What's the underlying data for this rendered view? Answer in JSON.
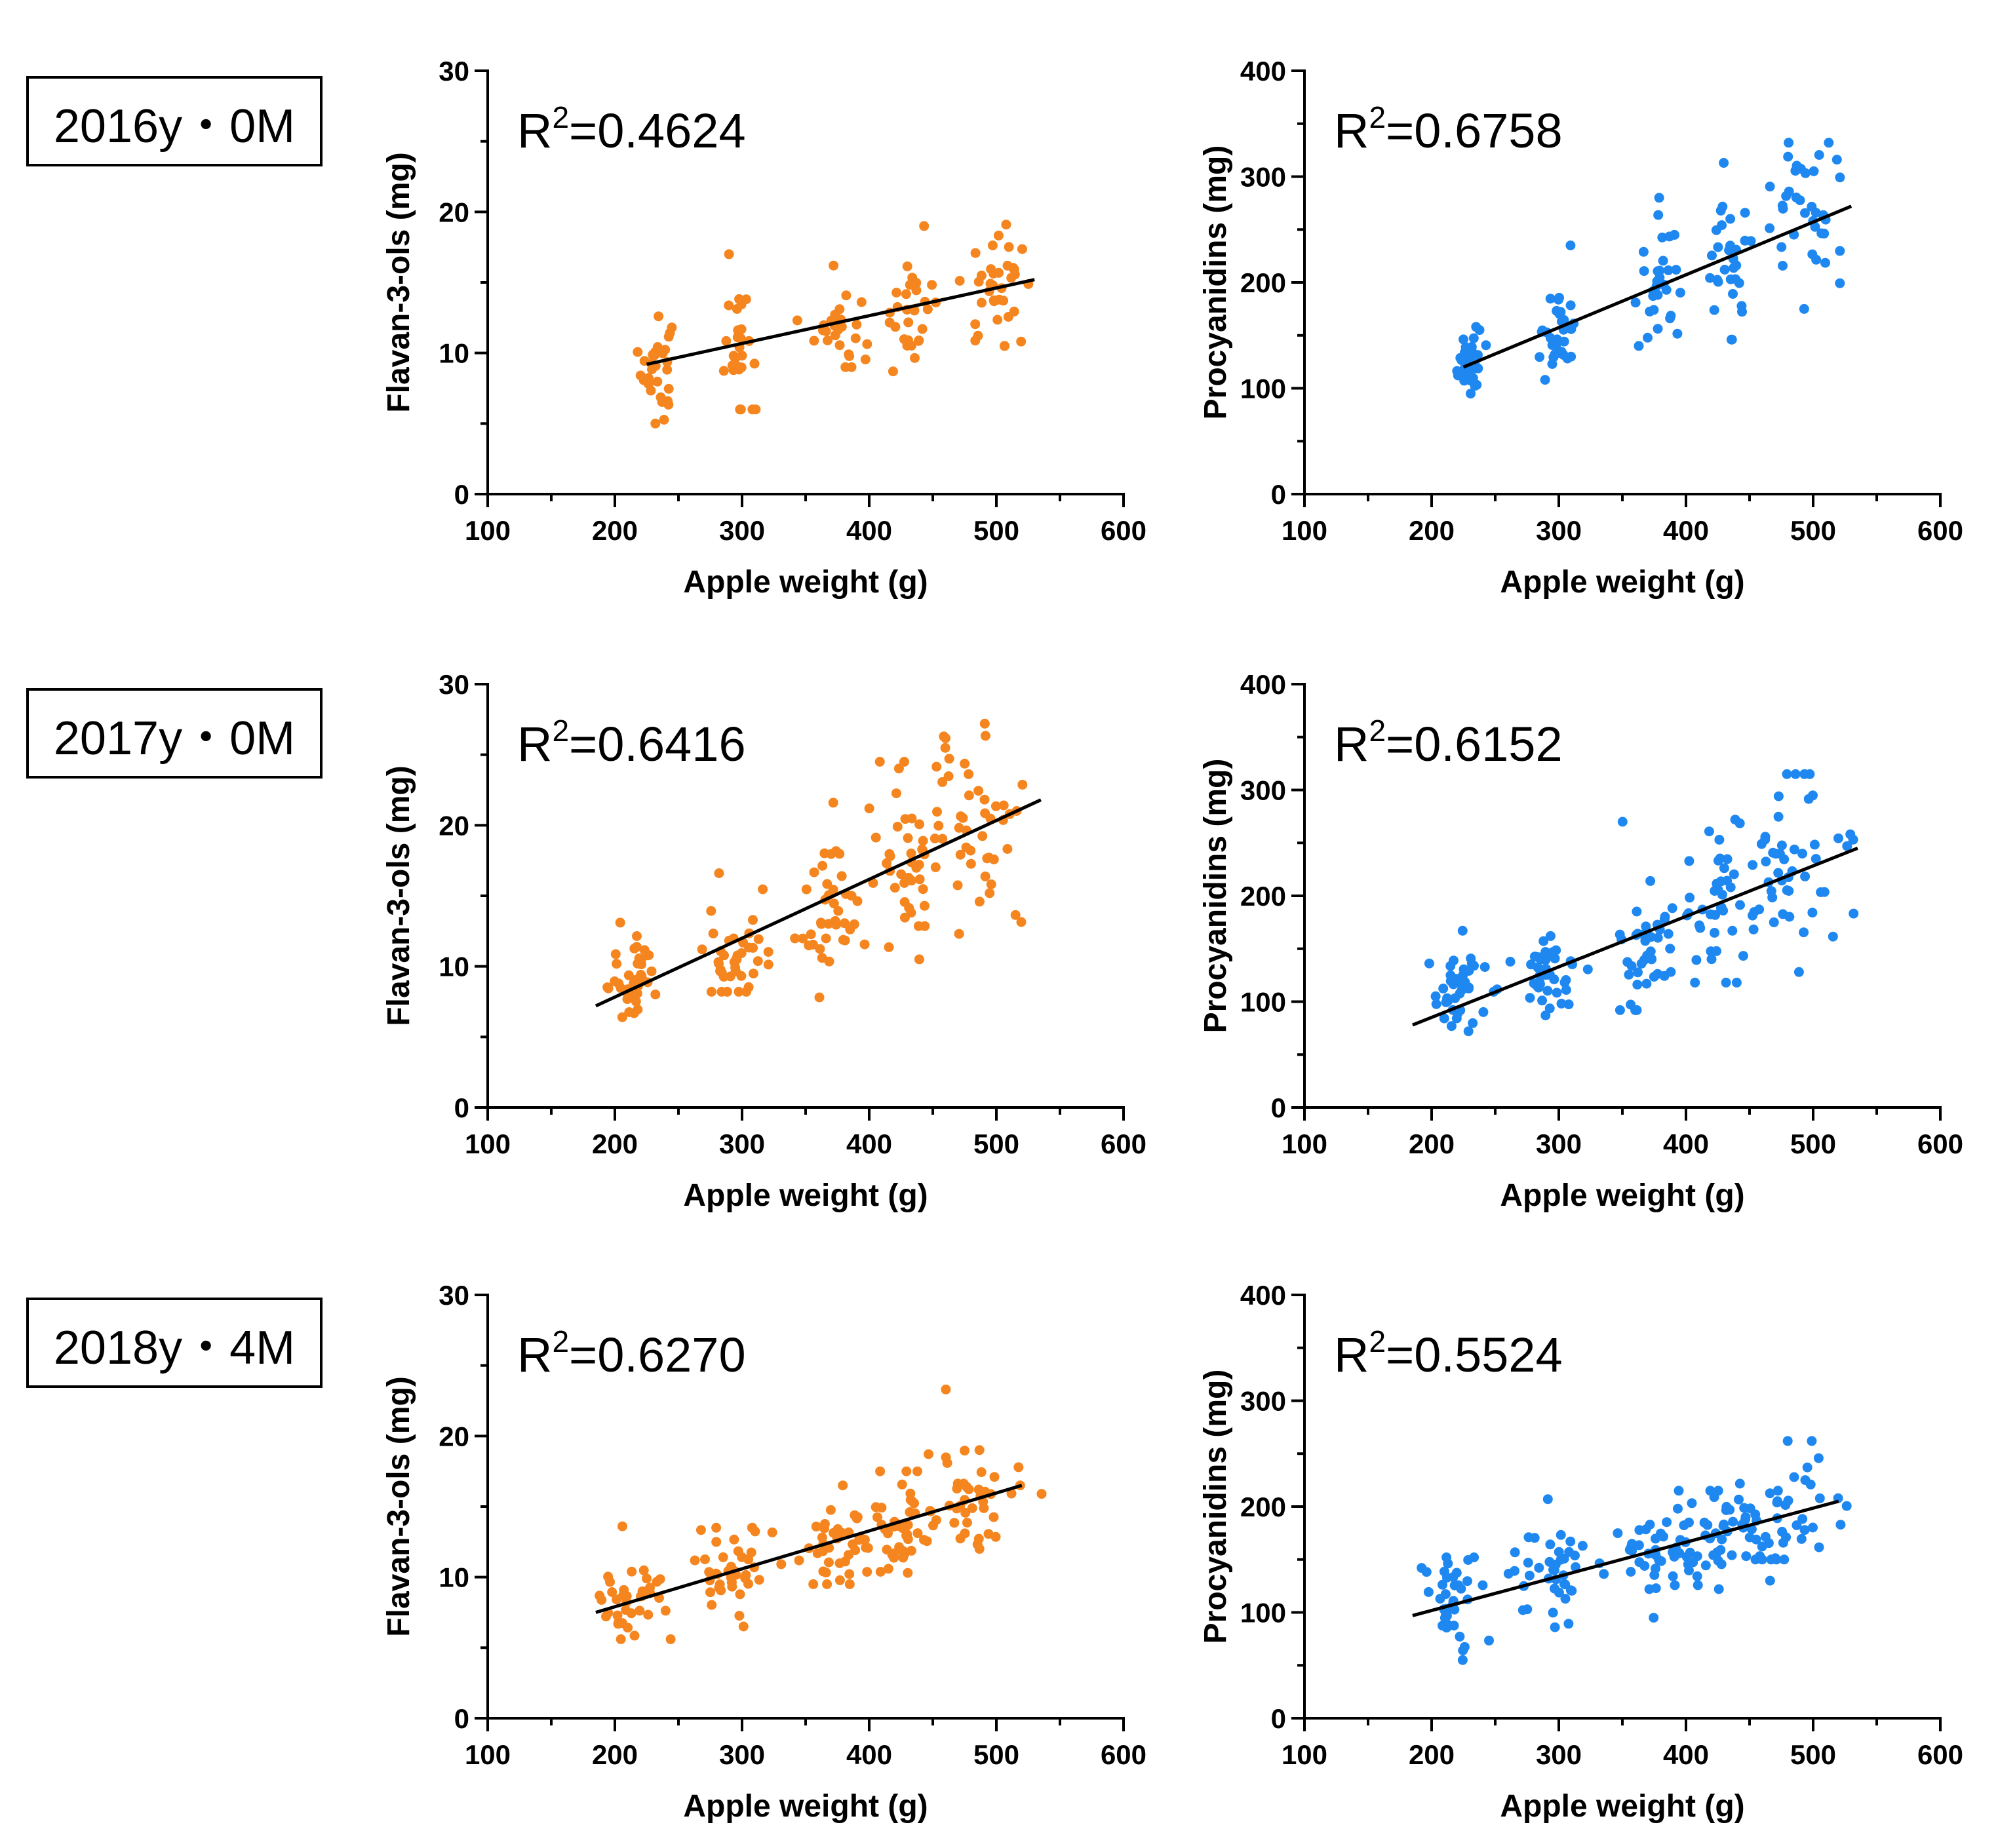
{
  "row_labels": [
    "2016y・0M",
    "2017y・0M",
    "2018y・4M"
  ],
  "colors": {
    "flavan": "#F5851F",
    "procyanidin": "#1E88F0",
    "fit": "#000000"
  },
  "chart_data": [
    {
      "type": "scatter",
      "row": 0,
      "col": 0,
      "color_key": "flavan",
      "r2_prefix": "R",
      "r2_sup": "2",
      "r2_value": "=0.4624",
      "xlabel": "Apple weight (g)",
      "ylabel": "Flavan-3-ols (mg)",
      "xlim": [
        100,
        600
      ],
      "ylim": [
        0,
        30
      ],
      "xticks": [
        100,
        200,
        300,
        400,
        500,
        600
      ],
      "yticks": [
        0,
        10,
        20,
        30
      ],
      "fit": {
        "x": [
          225,
          530
        ],
        "y": [
          9.2,
          15.2
        ]
      },
      "clusters": [
        {
          "xc": 233,
          "xs": 6,
          "yc": 9,
          "ys": 1.8,
          "n": 32,
          "ymin": 5,
          "ymax": 12.6
        },
        {
          "xc": 298,
          "xs": 7,
          "yc": 10.5,
          "ys": 2.3,
          "n": 30,
          "ymin": 6,
          "ymax": 17
        },
        {
          "xc": 375,
          "xs": 9,
          "yc": 11.8,
          "ys": 1.4,
          "n": 28,
          "ymin": 9,
          "ymax": 16.2
        },
        {
          "xc": 432,
          "xs": 10,
          "yc": 13.2,
          "ys": 1.9,
          "n": 28,
          "ymin": 8.7,
          "ymax": 19
        },
        {
          "xc": 500,
          "xs": 14,
          "yc": 14.3,
          "ys": 1.8,
          "n": 36,
          "ymin": 10.5,
          "ymax": 19.1
        }
      ]
    },
    {
      "type": "scatter",
      "row": 0,
      "col": 1,
      "color_key": "procyanidin",
      "r2_prefix": "R",
      "r2_sup": "2",
      "r2_value": "=0.6758",
      "xlabel": "Apple weight (g)",
      "ylabel": "Procyanidins (mg)",
      "xlim": [
        100,
        600
      ],
      "ylim": [
        0,
        400
      ],
      "xticks": [
        100,
        200,
        300,
        400,
        500,
        600
      ],
      "yticks": [
        0,
        100,
        200,
        300,
        400
      ],
      "fit": {
        "x": [
          225,
          530
        ],
        "y": [
          120,
          272
        ]
      },
      "clusters": [
        {
          "xc": 230,
          "xs": 5,
          "yc": 125,
          "ys": 14,
          "n": 34,
          "ymin": 95,
          "ymax": 158
        },
        {
          "xc": 300,
          "xs": 6,
          "yc": 152,
          "ys": 22,
          "n": 32,
          "ymin": 108,
          "ymax": 235
        },
        {
          "xc": 378,
          "xs": 10,
          "yc": 200,
          "ys": 30,
          "n": 28,
          "ymin": 140,
          "ymax": 280
        },
        {
          "xc": 432,
          "xs": 12,
          "yc": 225,
          "ys": 32,
          "n": 34,
          "ymin": 146,
          "ymax": 313
        },
        {
          "xc": 497,
          "xs": 14,
          "yc": 262,
          "ys": 38,
          "n": 36,
          "ymin": 175,
          "ymax": 332
        }
      ]
    },
    {
      "type": "scatter",
      "row": 1,
      "col": 0,
      "color_key": "flavan",
      "r2_prefix": "R",
      "r2_sup": "2",
      "r2_value": "=0.6416",
      "xlabel": "Apple weight (g)",
      "ylabel": "Flavan-3-ols (mg)",
      "xlim": [
        100,
        600
      ],
      "ylim": [
        0,
        30
      ],
      "xticks": [
        100,
        200,
        300,
        400,
        500,
        600
      ],
      "yticks": [
        0,
        10,
        20,
        30
      ],
      "fit": {
        "x": [
          185,
          535
        ],
        "y": [
          7.2,
          21.8
        ]
      },
      "clusters": [
        {
          "xc": 218,
          "xs": 12,
          "yc": 9.3,
          "ys": 1.4,
          "n": 42,
          "ymin": 6.4,
          "ymax": 13.1
        },
        {
          "xc": 292,
          "xs": 13,
          "yc": 10.6,
          "ys": 1.9,
          "n": 40,
          "ymin": 8.2,
          "ymax": 16.6
        },
        {
          "xc": 370,
          "xs": 12,
          "yc": 13.5,
          "ys": 2.6,
          "n": 40,
          "ymin": 7.8,
          "ymax": 21.6
        },
        {
          "xc": 430,
          "xs": 14,
          "yc": 17.5,
          "ys": 2.8,
          "n": 44,
          "ymin": 10.5,
          "ymax": 24.5
        },
        {
          "xc": 485,
          "xs": 18,
          "yc": 19.5,
          "ys": 3.5,
          "n": 44,
          "ymin": 12.3,
          "ymax": 27.2
        }
      ]
    },
    {
      "type": "scatter",
      "row": 1,
      "col": 1,
      "color_key": "procyanidin",
      "r2_prefix": "R",
      "r2_sup": "2",
      "r2_value": "=0.6152",
      "xlabel": "Apple weight (g)",
      "ylabel": "Procyanidins (mg)",
      "xlim": [
        100,
        600
      ],
      "ylim": [
        0,
        400
      ],
      "xticks": [
        100,
        200,
        300,
        400,
        500,
        600
      ],
      "yticks": [
        0,
        100,
        200,
        300,
        400
      ],
      "fit": {
        "x": [
          185,
          535
        ],
        "y": [
          78,
          245
        ]
      },
      "clusters": [
        {
          "xc": 218,
          "xs": 12,
          "yc": 110,
          "ys": 18,
          "n": 42,
          "ymin": 72,
          "ymax": 167
        },
        {
          "xc": 292,
          "xs": 13,
          "yc": 120,
          "ys": 18,
          "n": 40,
          "ymin": 87,
          "ymax": 162
        },
        {
          "xc": 370,
          "xs": 12,
          "yc": 155,
          "ys": 35,
          "n": 40,
          "ymin": 92,
          "ymax": 270
        },
        {
          "xc": 430,
          "xs": 14,
          "yc": 190,
          "ys": 35,
          "n": 44,
          "ymin": 118,
          "ymax": 272
        },
        {
          "xc": 488,
          "xs": 18,
          "yc": 230,
          "ys": 38,
          "n": 44,
          "ymin": 128,
          "ymax": 315
        }
      ]
    },
    {
      "type": "scatter",
      "row": 2,
      "col": 0,
      "color_key": "flavan",
      "r2_prefix": "R",
      "r2_sup": "2",
      "r2_value": "=0.6270",
      "xlabel": "Apple weight (g)",
      "ylabel": "Flavan-3-ols (mg)",
      "xlim": [
        100,
        600
      ],
      "ylim": [
        0,
        30
      ],
      "xticks": [
        100,
        200,
        300,
        400,
        500,
        600
      ],
      "yticks": [
        0,
        10,
        20,
        30
      ],
      "fit": {
        "x": [
          185,
          520
        ],
        "y": [
          7.5,
          16.5
        ]
      },
      "clusters": [
        {
          "xc": 215,
          "xs": 12,
          "yc": 8.8,
          "ys": 1.6,
          "n": 38,
          "ymin": 5.6,
          "ymax": 13.6
        },
        {
          "xc": 292,
          "xs": 16,
          "yc": 10.5,
          "ys": 1.7,
          "n": 40,
          "ymin": 6.5,
          "ymax": 13.5
        },
        {
          "xc": 375,
          "xs": 18,
          "yc": 12.3,
          "ys": 1.6,
          "n": 44,
          "ymin": 9.5,
          "ymax": 16.5
        },
        {
          "xc": 430,
          "xs": 16,
          "yc": 13.5,
          "ys": 1.7,
          "n": 42,
          "ymin": 10.3,
          "ymax": 17.5
        },
        {
          "xc": 480,
          "xs": 20,
          "yc": 15.5,
          "ys": 2.0,
          "n": 40,
          "ymin": 12,
          "ymax": 23.3
        }
      ]
    },
    {
      "type": "scatter",
      "row": 2,
      "col": 1,
      "color_key": "procyanidin",
      "r2_prefix": "R",
      "r2_sup": "2",
      "r2_value": "=0.5524",
      "xlabel": "Apple weight (g)",
      "ylabel": "Procyanidins (mg)",
      "xlim": [
        100,
        600
      ],
      "ylim": [
        0,
        400
      ],
      "xticks": [
        100,
        200,
        300,
        400,
        500,
        600
      ],
      "yticks": [
        0,
        100,
        200,
        300,
        400
      ],
      "fit": {
        "x": [
          185,
          520
        ],
        "y": [
          97,
          205
        ]
      },
      "clusters": [
        {
          "xc": 215,
          "xs": 12,
          "yc": 115,
          "ys": 22,
          "n": 38,
          "ymin": 55,
          "ymax": 152
        },
        {
          "xc": 292,
          "xs": 16,
          "yc": 140,
          "ys": 25,
          "n": 40,
          "ymin": 86,
          "ymax": 207
        },
        {
          "xc": 375,
          "xs": 18,
          "yc": 155,
          "ys": 18,
          "n": 44,
          "ymin": 95,
          "ymax": 198
        },
        {
          "xc": 430,
          "xs": 16,
          "yc": 170,
          "ys": 18,
          "n": 42,
          "ymin": 122,
          "ymax": 215
        },
        {
          "xc": 480,
          "xs": 20,
          "yc": 198,
          "ys": 28,
          "n": 40,
          "ymin": 150,
          "ymax": 262
        }
      ]
    }
  ]
}
